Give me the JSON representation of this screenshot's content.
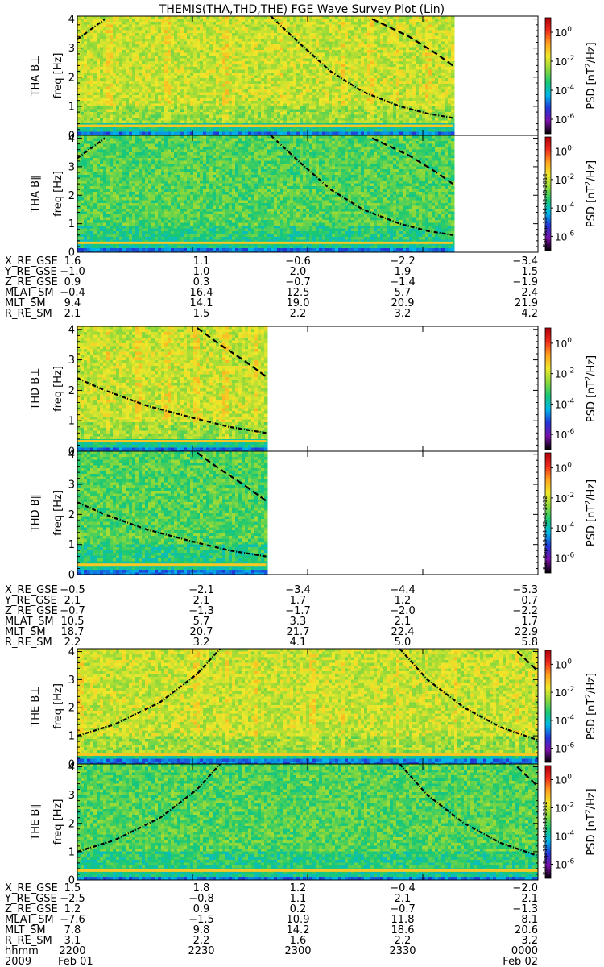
{
  "chart_data": {
    "type": "heatmap",
    "title": "THEMIS(THA,THD,THE) FGE Wave Survey Plot (Lin)",
    "stamp": "Sat Sep 15 04:42:45 2012",
    "colorbar": {
      "label_prefix": "PSD [nT",
      "label_exp": "2",
      "label_suffix": "/Hz]",
      "scale": "log",
      "ticks": [
        {
          "base": "10",
          "exp": "0",
          "value": 1
        },
        {
          "base": "10",
          "exp": "-2",
          "value": 0.01
        },
        {
          "base": "10",
          "exp": "-4",
          "value": 0.0001
        },
        {
          "base": "10",
          "exp": "-6",
          "value": 1e-06
        }
      ],
      "colors": [
        "#000000",
        "#7a0fa8",
        "#2236d8",
        "#00b7e8",
        "#19c873",
        "#8ed83a",
        "#f0e82a",
        "#ffa21e",
        "#ef2a1c",
        "#b0000a"
      ]
    },
    "ylabel": "freq [Hz]",
    "yticks": [
      "0",
      "1",
      "2",
      "3",
      "4"
    ],
    "ylim": [
      0,
      4.1
    ],
    "panels": [
      {
        "probe": "THA",
        "name": "THA B⊥",
        "component": "perp",
        "data_end": 0.815,
        "level": 0.62,
        "band_top": 0.35,
        "curves": [
          {
            "style": "dotted",
            "points": [
              [
                0,
                3.3
              ],
              [
                0.06,
                4.0
              ]
            ]
          },
          {
            "style": "dotted",
            "points": [
              [
                0.42,
                4.1
              ],
              [
                0.48,
                3.2
              ],
              [
                0.55,
                2.2
              ],
              [
                0.62,
                1.5
              ],
              [
                0.7,
                1.0
              ],
              [
                0.76,
                0.75
              ],
              [
                0.815,
                0.6
              ]
            ]
          },
          {
            "style": "dashed",
            "points": [
              [
                0.64,
                4.0
              ],
              [
                0.72,
                3.4
              ],
              [
                0.78,
                2.8
              ],
              [
                0.815,
                2.4
              ]
            ]
          }
        ]
      },
      {
        "probe": "THA",
        "name": "THA B∥",
        "component": "para",
        "data_end": 0.815,
        "level": 0.5,
        "band_top": 0.4,
        "curves": [
          {
            "style": "dotted",
            "points": [
              [
                0,
                3.3
              ],
              [
                0.06,
                4.0
              ]
            ]
          },
          {
            "style": "dotted",
            "points": [
              [
                0.42,
                4.1
              ],
              [
                0.48,
                3.2
              ],
              [
                0.55,
                2.2
              ],
              [
                0.62,
                1.5
              ],
              [
                0.7,
                1.0
              ],
              [
                0.76,
                0.75
              ],
              [
                0.815,
                0.6
              ]
            ]
          },
          {
            "style": "dashed",
            "points": [
              [
                0.64,
                4.0
              ],
              [
                0.72,
                3.4
              ],
              [
                0.78,
                2.8
              ],
              [
                0.815,
                2.4
              ]
            ]
          }
        ]
      },
      {
        "probe": "THD",
        "name": "THD B⊥",
        "component": "perp",
        "data_end": 0.41,
        "level": 0.62,
        "band_top": 0.35,
        "curves": [
          {
            "style": "dotted",
            "points": [
              [
                0,
                2.4
              ],
              [
                0.06,
                2.0
              ],
              [
                0.15,
                1.5
              ],
              [
                0.25,
                1.1
              ],
              [
                0.33,
                0.8
              ],
              [
                0.41,
                0.6
              ]
            ]
          },
          {
            "style": "dashed",
            "points": [
              [
                0.26,
                4.05
              ],
              [
                0.31,
                3.5
              ],
              [
                0.36,
                3.0
              ],
              [
                0.41,
                2.45
              ]
            ]
          }
        ]
      },
      {
        "probe": "THD",
        "name": "THD B∥",
        "component": "para",
        "data_end": 0.41,
        "level": 0.5,
        "band_top": 0.4,
        "curves": [
          {
            "style": "dotted",
            "points": [
              [
                0,
                2.4
              ],
              [
                0.06,
                2.0
              ],
              [
                0.15,
                1.5
              ],
              [
                0.25,
                1.1
              ],
              [
                0.33,
                0.8
              ],
              [
                0.41,
                0.6
              ]
            ]
          },
          {
            "style": "dashed",
            "points": [
              [
                0.26,
                4.05
              ],
              [
                0.31,
                3.5
              ],
              [
                0.36,
                3.0
              ],
              [
                0.41,
                2.45
              ]
            ]
          }
        ]
      },
      {
        "probe": "THE",
        "name": "THE B⊥",
        "component": "perp",
        "data_end": 1.0,
        "level": 0.62,
        "band_top": 0.35,
        "curves": [
          {
            "style": "dotted",
            "points": [
              [
                0,
                1.0
              ],
              [
                0.08,
                1.4
              ],
              [
                0.18,
                2.2
              ],
              [
                0.26,
                3.2
              ],
              [
                0.31,
                4.1
              ]
            ]
          },
          {
            "style": "dotted",
            "points": [
              [
                0.7,
                4.1
              ],
              [
                0.76,
                3.0
              ],
              [
                0.84,
                2.0
              ],
              [
                0.92,
                1.3
              ],
              [
                1.0,
                0.85
              ]
            ]
          },
          {
            "style": "dashed",
            "points": [
              [
                0.955,
                4.0
              ],
              [
                1.0,
                3.3
              ]
            ]
          }
        ]
      },
      {
        "probe": "THE",
        "name": "THE B∥",
        "component": "para",
        "data_end": 1.0,
        "level": 0.5,
        "band_top": 0.4,
        "curves": [
          {
            "style": "dotted",
            "points": [
              [
                0,
                1.0
              ],
              [
                0.08,
                1.4
              ],
              [
                0.18,
                2.2
              ],
              [
                0.26,
                3.2
              ],
              [
                0.31,
                4.1
              ]
            ]
          },
          {
            "style": "dotted",
            "points": [
              [
                0.7,
                4.1
              ],
              [
                0.76,
                3.0
              ],
              [
                0.84,
                2.0
              ],
              [
                0.92,
                1.3
              ],
              [
                1.0,
                0.85
              ]
            ]
          },
          {
            "style": "dashed",
            "points": [
              [
                0.955,
                4.0
              ],
              [
                1.0,
                3.3
              ]
            ]
          }
        ]
      }
    ],
    "ephemeris": [
      {
        "probe": "THA",
        "rows": [
          {
            "label": "X_RE_GSE",
            "values": [
              "1.6",
              "1.1",
              "−0.6",
              "−2.2",
              "−3.4"
            ]
          },
          {
            "label": "Y_RE_GSE",
            "values": [
              "−1.0",
              "1.0",
              "2.0",
              "1.9",
              "1.5"
            ]
          },
          {
            "label": "Z_RE_GSE",
            "values": [
              "0.9",
              "0.3",
              "−0.7",
              "−1.4",
              "−1.9"
            ]
          },
          {
            "label": "MLAT_SM",
            "values": [
              "−0.4",
              "16.4",
              "12.5",
              "5.7",
              "2.4"
            ]
          },
          {
            "label": "MLT_SM",
            "values": [
              "9.4",
              "14.1",
              "19.0",
              "20.9",
              "21.9"
            ]
          },
          {
            "label": "R_RE_SM",
            "values": [
              "2.1",
              "1.5",
              "2.2",
              "3.2",
              "4.2"
            ]
          }
        ]
      },
      {
        "probe": "THD",
        "rows": [
          {
            "label": "X_RE_GSE",
            "values": [
              "−0.5",
              "−2.1",
              "−3.4",
              "−4.4",
              "−5.3"
            ]
          },
          {
            "label": "Y_RE_GSE",
            "values": [
              "2.1",
              "2.1",
              "1.7",
              "1.2",
              "0.7"
            ]
          },
          {
            "label": "Z_RE_GSE",
            "values": [
              "−0.7",
              "−1.3",
              "−1.7",
              "−2.0",
              "−2.2"
            ]
          },
          {
            "label": "MLAT_SM",
            "values": [
              "10.5",
              "5.7",
              "3.3",
              "2.1",
              "1.7"
            ]
          },
          {
            "label": "MLT_SM",
            "values": [
              "18.7",
              "20.7",
              "21.7",
              "22.4",
              "22.9"
            ]
          },
          {
            "label": "R_RE_SM",
            "values": [
              "2.2",
              "3.2",
              "4.1",
              "5.0",
              "5.8"
            ]
          }
        ]
      },
      {
        "probe": "THE",
        "rows": [
          {
            "label": "X_RE_GSE",
            "values": [
              "1.5",
              "1.8",
              "1.2",
              "−0.4",
              "−2.0"
            ]
          },
          {
            "label": "Y_RE_GSE",
            "values": [
              "−2.5",
              "−0.8",
              "1.1",
              "2.1",
              "2.1"
            ]
          },
          {
            "label": "Z_RE_GSE",
            "values": [
              "1.2",
              "0.9",
              "0.2",
              "−0.7",
              "−1.3"
            ]
          },
          {
            "label": "MLAT_SM",
            "values": [
              "−7.6",
              "−1.5",
              "10.9",
              "11.8",
              "8.1"
            ]
          },
          {
            "label": "MLT_SM",
            "values": [
              "7.8",
              "9.8",
              "14.2",
              "18.6",
              "20.6"
            ]
          },
          {
            "label": "R_RE_SM",
            "values": [
              "3.1",
              "2.2",
              "1.6",
              "2.2",
              "3.2"
            ]
          },
          {
            "label": "hhmm",
            "values": [
              "2200",
              "2230",
              "2300",
              "2330",
              "0000"
            ]
          }
        ]
      }
    ],
    "date_row": {
      "year": "2009",
      "start": "Feb 01",
      "end": "Feb 02"
    }
  }
}
